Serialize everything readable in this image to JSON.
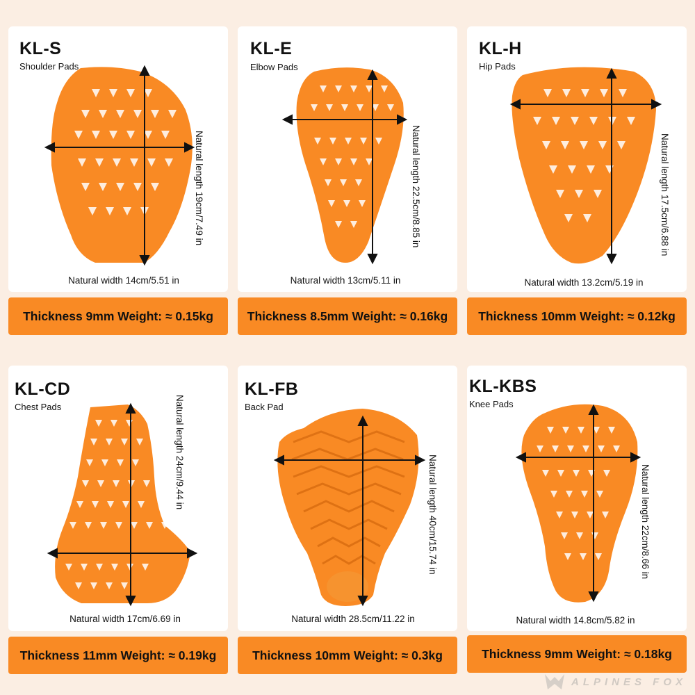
{
  "colors": {
    "background": "#fbeee3",
    "card": "#ffffff",
    "pad_orange": "#f98a24",
    "thickness_bar": "#f98a24",
    "arrow": "#111111"
  },
  "pads": [
    {
      "code": "KL-S",
      "name": "Shoulder Pads",
      "width_label": "Natural width 14cm/5.51 in",
      "length_label": "Natural length 19cm/7.49 in",
      "spec": "Thickness 9mm Weight: ≈ 0.15kg"
    },
    {
      "code": "KL-E",
      "name": "Elbow Pads",
      "width_label": "Natural width 13cm/5.11 in",
      "length_label": "Natural length 22.5cm/8.85 in",
      "spec": "Thickness 8.5mm Weight: ≈ 0.16kg"
    },
    {
      "code": "KL-H",
      "name": "Hip Pads",
      "width_label": "Natural width 13.2cm/5.19 in",
      "length_label": "Natural length 17.5cm/6.88 in",
      "spec": "Thickness 10mm Weight: ≈ 0.12kg"
    },
    {
      "code": "KL-CD",
      "name": "Chest Pads",
      "width_label": "Natural width 17cm/6.69 in",
      "length_label": "Natural length 24cm/9.44 in",
      "spec": "Thickness 11mm Weight: ≈ 0.19kg"
    },
    {
      "code": "KL-FB",
      "name": "Back Pad",
      "width_label": "Natural width 28.5cm/11.22 in",
      "length_label": "Natural length 40cm/15.74 in",
      "spec": "Thickness 10mm Weight: ≈ 0.3kg"
    },
    {
      "code": "KL-KBS",
      "name": "Knee Pads",
      "width_label": "Natural width 14.8cm/5.82 in",
      "length_label": "Natural length 22cm/8.66 in",
      "spec": "Thickness 9mm Weight: ≈ 0.18kg"
    }
  ],
  "watermark": {
    "text": "ALPINES FOX",
    "icon": "fox-logo-icon"
  }
}
